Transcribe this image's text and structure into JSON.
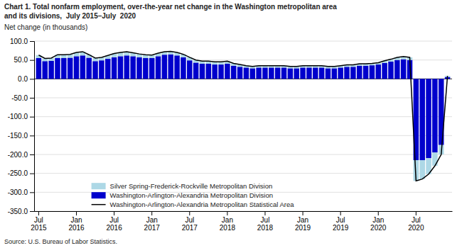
{
  "chart_data": {
    "type": "bar",
    "title": "Chart 1. Total nonfarm employment, over-the-year net change in the Washington metropolitan area",
    "subtitle": "and its divisions,  July 2015–July  2020",
    "y_label": "Net change (in thousands)",
    "annotations": [
      "Source: U.S. Bureau of Labor Statistics."
    ],
    "stacked": true,
    "grid": true,
    "legend": "bottom",
    "ylim": [
      -350,
      100
    ],
    "yticks": [
      {
        "value": 100,
        "label": "100.0"
      },
      {
        "value": 50,
        "label": "50.0"
      },
      {
        "value": 0,
        "label": "0.0"
      },
      {
        "value": -50,
        "label": "-50.0"
      },
      {
        "value": -100,
        "label": "-100.0"
      },
      {
        "value": -150,
        "label": "-150.0"
      },
      {
        "value": -200,
        "label": "-200.0"
      },
      {
        "value": -250,
        "label": "-250.0"
      },
      {
        "value": -300,
        "label": "-300.0"
      },
      {
        "value": -350,
        "label": "-350.0"
      }
    ],
    "categories": [
      "Jul\n2015",
      null,
      null,
      null,
      null,
      null,
      "Jan\n2016",
      null,
      null,
      null,
      null,
      null,
      "Jul\n2016",
      null,
      null,
      null,
      null,
      null,
      "Jan\n2017",
      null,
      null,
      null,
      null,
      null,
      "Jul\n2017",
      null,
      null,
      null,
      null,
      null,
      "Jan\n2018",
      null,
      null,
      null,
      null,
      null,
      "Jul\n2018",
      null,
      null,
      null,
      null,
      null,
      "Jan\n2019",
      null,
      null,
      null,
      null,
      null,
      "Jul\n2019",
      null,
      null,
      null,
      null,
      null,
      "Jan\n2020",
      null,
      null,
      null,
      null,
      null,
      "Jul\n2020",
      null,
      null,
      null,
      null,
      null
    ],
    "series": [
      {
        "name": "Silver Spring-Frederick-Rockville Metropolitan Division",
        "type": "bar",
        "color": "#ADD8E6",
        "values": [
          8,
          7,
          7,
          9,
          9,
          9,
          10,
          10,
          8,
          8,
          8,
          9,
          10,
          10,
          10,
          9,
          9,
          9,
          8,
          8,
          8,
          8,
          8,
          8,
          8,
          7,
          7,
          7,
          7,
          7,
          7,
          6,
          6,
          5,
          5,
          5,
          5,
          5,
          5,
          5,
          5,
          5,
          5,
          5,
          5,
          5,
          5,
          5,
          5,
          5,
          5,
          5,
          5,
          5,
          5,
          6,
          6,
          7,
          7,
          7,
          -55,
          -50,
          -42,
          -35,
          -25,
          3
        ]
      },
      {
        "name": "Washington-Arlington-Alexandria Metropolitan Division",
        "type": "bar",
        "color": "#0000CC",
        "values": [
          55,
          47,
          48,
          55,
          55,
          56,
          60,
          62,
          56,
          47,
          49,
          53,
          57,
          60,
          62,
          60,
          57,
          55,
          55,
          60,
          64,
          65,
          62,
          57,
          49,
          43,
          40,
          40,
          38,
          38,
          40,
          35,
          32,
          30,
          28,
          30,
          30,
          30,
          30,
          30,
          28,
          28,
          30,
          30,
          30,
          30,
          28,
          28,
          30,
          32,
          32,
          35,
          35,
          36,
          38,
          42,
          46,
          50,
          52,
          50,
          -215,
          -215,
          -210,
          -195,
          -175,
          5
        ]
      },
      {
        "name": "Washington-Arlington-Alexandria Metropolitan Statistical Area",
        "type": "line",
        "color": "#000000",
        "values": [
          63,
          54,
          55,
          64,
          64,
          65,
          70,
          72,
          64,
          55,
          57,
          62,
          67,
          70,
          72,
          69,
          66,
          64,
          63,
          68,
          72,
          73,
          70,
          65,
          57,
          50,
          47,
          47,
          45,
          45,
          47,
          41,
          38,
          35,
          33,
          35,
          35,
          35,
          35,
          35,
          33,
          33,
          35,
          35,
          35,
          35,
          33,
          33,
          35,
          37,
          37,
          40,
          40,
          41,
          43,
          48,
          52,
          57,
          59,
          57,
          -270,
          -265,
          -252,
          -230,
          -200,
          8
        ]
      }
    ]
  }
}
